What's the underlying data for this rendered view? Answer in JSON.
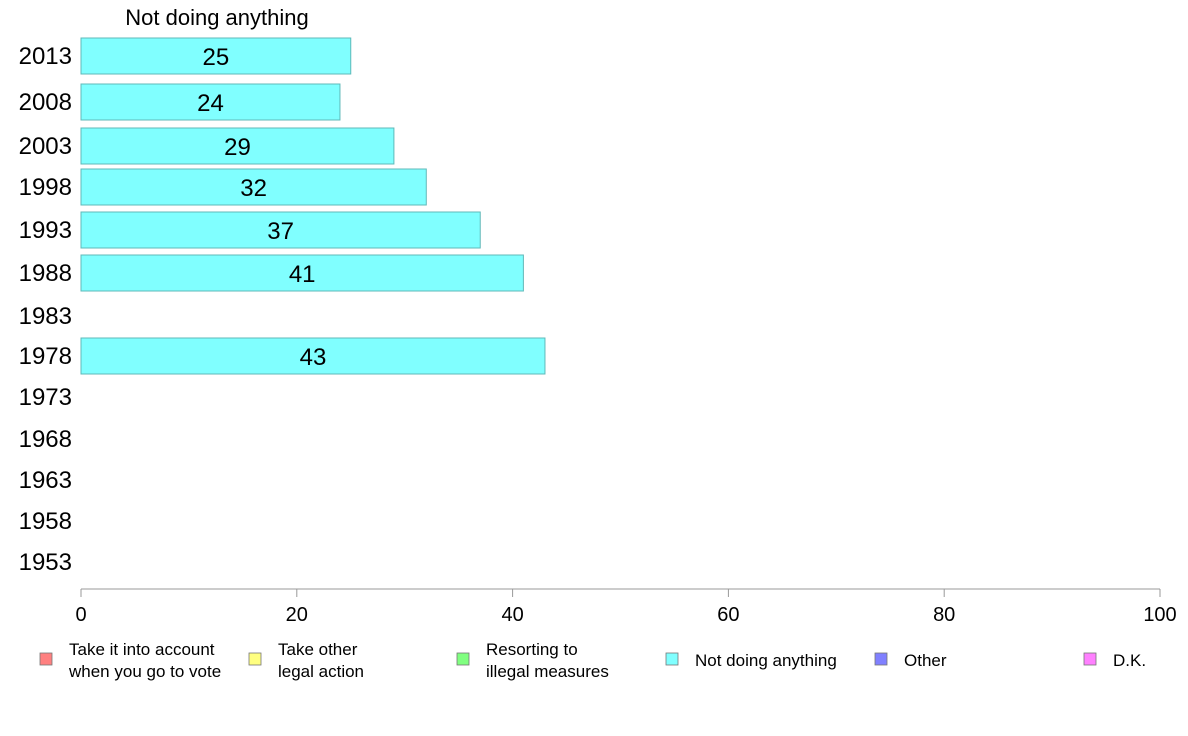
{
  "chart_data": {
    "type": "bar",
    "orientation": "horizontal",
    "title": "Not doing anything",
    "categories": [
      "2013",
      "2008",
      "2003",
      "1998",
      "1993",
      "1988",
      "1983",
      "1978",
      "1973",
      "1968",
      "1963",
      "1958",
      "1953"
    ],
    "series": [
      {
        "name": "Not doing anything",
        "color": "#80ffff",
        "values": [
          25,
          24,
          29,
          32,
          37,
          41,
          null,
          43,
          null,
          null,
          null,
          null,
          null
        ]
      }
    ],
    "xlim": [
      0,
      100
    ],
    "xticks": [
      0,
      20,
      40,
      60,
      80,
      100
    ],
    "grid": false,
    "legend_position": "bottom",
    "legend": [
      {
        "lines": [
          "Take it into account",
          "when you go to vote"
        ],
        "color": "#ff8080"
      },
      {
        "lines": [
          "Take other",
          "legal action"
        ],
        "color": "#ffff80"
      },
      {
        "lines": [
          "Resorting to",
          "illegal measures"
        ],
        "color": "#80ff80"
      },
      {
        "lines": [
          "Not doing anything"
        ],
        "color": "#80ffff"
      },
      {
        "lines": [
          "Other"
        ],
        "color": "#8080ff"
      },
      {
        "lines": [
          "D.K."
        ],
        "color": "#ff80ff"
      }
    ]
  }
}
